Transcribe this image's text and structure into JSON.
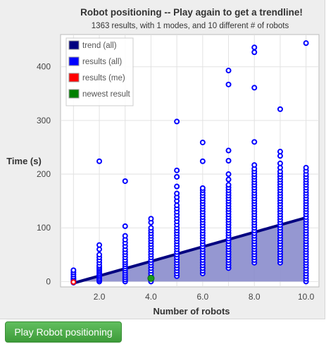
{
  "chart_data": {
    "type": "scatter",
    "title": "Robot positioning -- Play again to get a trendline!",
    "subtitle": "1363 results, with 1 modes, and 10 different # of robots",
    "xlabel": "Number of robots",
    "ylabel": "Time (s)",
    "xlim": [
      0.5,
      10.5
    ],
    "ylim": [
      -10,
      460
    ],
    "x_ticks": [
      2,
      4,
      6,
      8,
      10
    ],
    "x_tick_labels": [
      "2.0",
      "4.0",
      "6.0",
      "8.0",
      "10.0"
    ],
    "y_ticks": [
      0,
      100,
      200,
      300,
      400
    ],
    "y_tick_labels": [
      "0",
      "100",
      "200",
      "300",
      "400"
    ],
    "grid": true,
    "legend_position": "top-left",
    "legend": [
      {
        "label": "trend (all)",
        "color": "#000080"
      },
      {
        "label": "results (all)",
        "color": "#0000ff"
      },
      {
        "label": "results (me)",
        "color": "#ff0000"
      },
      {
        "label": "newest result",
        "color": "#008000"
      }
    ],
    "trend_all": {
      "x": [
        1,
        10
      ],
      "y": [
        -3,
        119
      ]
    },
    "results_all": [
      {
        "x": 1,
        "y": [
          -2,
          0,
          2,
          4,
          6,
          9,
          13,
          17,
          21
        ]
      },
      {
        "x": 2,
        "y": [
          0,
          3,
          6,
          9,
          12,
          15,
          18,
          21,
          24,
          27,
          30,
          35,
          40,
          45,
          50,
          60,
          68,
          224
        ]
      },
      {
        "x": 3,
        "y": [
          0,
          4,
          8,
          12,
          16,
          20,
          24,
          28,
          32,
          36,
          40,
          45,
          50,
          55,
          60,
          66,
          72,
          78,
          85,
          103,
          187
        ]
      },
      {
        "x": 4,
        "y": [
          0,
          5,
          10,
          15,
          20,
          25,
          30,
          35,
          40,
          45,
          50,
          55,
          60,
          65,
          70,
          75,
          80,
          85,
          90,
          95,
          100,
          110,
          117
        ]
      },
      {
        "x": 5,
        "y": [
          10,
          15,
          20,
          25,
          30,
          35,
          40,
          45,
          50,
          55,
          60,
          65,
          70,
          75,
          80,
          85,
          90,
          95,
          100,
          106,
          112,
          118,
          124,
          130,
          136,
          142,
          150,
          157,
          164,
          177,
          195,
          207,
          298
        ]
      },
      {
        "x": 6,
        "y": [
          15,
          20,
          25,
          30,
          35,
          40,
          45,
          50,
          55,
          60,
          65,
          70,
          75,
          80,
          85,
          90,
          95,
          100,
          105,
          110,
          115,
          120,
          125,
          130,
          135,
          140,
          145,
          150,
          155,
          160,
          165,
          170,
          174,
          224,
          259
        ]
      },
      {
        "x": 7,
        "y": [
          25,
          30,
          35,
          40,
          45,
          50,
          55,
          60,
          65,
          70,
          75,
          80,
          85,
          90,
          95,
          100,
          105,
          110,
          115,
          120,
          125,
          130,
          135,
          140,
          145,
          150,
          155,
          160,
          165,
          170,
          175,
          180,
          190,
          200,
          225,
          244,
          367,
          393
        ]
      },
      {
        "x": 8,
        "y": [
          35,
          40,
          45,
          50,
          55,
          60,
          65,
          70,
          75,
          80,
          85,
          90,
          95,
          100,
          105,
          110,
          115,
          120,
          125,
          130,
          135,
          140,
          145,
          150,
          155,
          160,
          165,
          170,
          175,
          180,
          185,
          190,
          195,
          200,
          205,
          210,
          217,
          260,
          361,
          427,
          436
        ]
      },
      {
        "x": 9,
        "y": [
          35,
          40,
          45,
          50,
          55,
          60,
          65,
          70,
          75,
          80,
          85,
          90,
          95,
          100,
          105,
          110,
          115,
          120,
          125,
          130,
          135,
          140,
          145,
          150,
          155,
          160,
          165,
          170,
          175,
          180,
          185,
          190,
          195,
          200,
          205,
          212,
          220,
          234,
          242,
          321
        ]
      },
      {
        "x": 10,
        "y": [
          0,
          5,
          10,
          15,
          20,
          25,
          30,
          35,
          40,
          45,
          50,
          55,
          60,
          65,
          70,
          75,
          80,
          85,
          90,
          95,
          100,
          105,
          110,
          115,
          120,
          125,
          130,
          135,
          140,
          145,
          150,
          155,
          160,
          165,
          170,
          175,
          180,
          185,
          190,
          195,
          200,
          206,
          212,
          444
        ]
      }
    ],
    "results_me": [
      {
        "x": 1,
        "y": -1
      }
    ],
    "newest_result": [
      {
        "x": 4,
        "y": 6
      }
    ]
  },
  "play_button": {
    "label": "Play Robot positioning"
  },
  "colors": {
    "trend_line": "#000080",
    "trend_fill": "#8a8ccc",
    "point_stroke": "#0000ff",
    "point_fill": "#ffffff",
    "me_color": "#ff0000",
    "newest_color": "#1a9c1a",
    "grid": "#e2e2e2",
    "axis_text": "#444444",
    "button_bg": "#4cae48"
  }
}
